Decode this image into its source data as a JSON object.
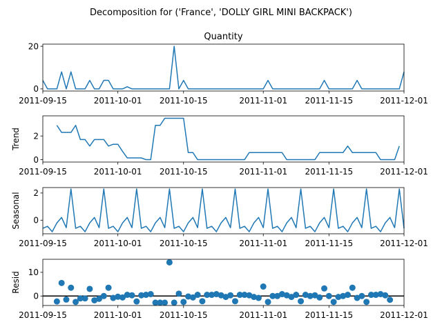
{
  "figure": {
    "suptitle": "Decomposition for ('France', 'DOLLY GIRL MINI BACKPACK')"
  },
  "chart_data": [
    {
      "type": "line",
      "panel": "observed",
      "title": "Quantity",
      "ylabel": "",
      "color": "#1f77b4",
      "x_start": "2011-09-15",
      "x_end": "2011-12-01",
      "x_ticks": [
        "2011-09-15",
        "2011-10-01",
        "2011-10-15",
        "2011-11-01",
        "2011-11-15",
        "2011-12-01"
      ],
      "y_ticks": [
        0,
        20
      ],
      "ylim": [
        -1,
        21
      ],
      "y_offset_day": 0,
      "values": [
        4,
        0,
        0,
        0,
        8,
        0,
        8,
        0,
        0,
        0,
        4,
        0,
        0,
        4,
        4,
        0,
        0,
        0,
        1,
        0,
        0,
        0,
        0,
        0,
        0,
        0,
        0,
        0,
        20,
        0,
        4,
        0,
        0,
        0,
        0,
        0,
        0,
        0,
        0,
        0,
        0,
        0,
        0,
        0,
        0,
        0,
        0,
        0,
        4,
        0,
        0,
        0,
        0,
        0,
        0,
        0,
        0,
        0,
        0,
        0,
        4,
        0,
        0,
        0,
        0,
        0,
        0,
        4,
        0,
        0,
        0,
        0,
        0,
        0,
        0,
        0,
        0,
        8
      ]
    },
    {
      "type": "line",
      "panel": "trend",
      "title": "",
      "ylabel": "Trend",
      "color": "#1f77b4",
      "x_start": "2011-09-15",
      "x_end": "2011-12-01",
      "x_ticks": [
        "2011-09-15",
        "2011-10-01",
        "2011-10-15",
        "2011-11-01",
        "2011-11-15",
        "2011-12-01"
      ],
      "y_ticks": [
        0,
        2
      ],
      "ylim": [
        -0.2,
        3.7
      ],
      "y_offset_day": 3,
      "values": [
        2.9,
        2.3,
        2.3,
        2.3,
        2.9,
        1.7,
        1.7,
        1.15,
        1.7,
        1.7,
        1.7,
        1.15,
        1.3,
        1.3,
        0.7,
        0.15,
        0.15,
        0.15,
        0.15,
        0.0,
        0.0,
        2.9,
        2.9,
        3.5,
        3.5,
        3.5,
        3.5,
        3.5,
        0.6,
        0.6,
        0.0,
        0.0,
        0.0,
        0.0,
        0.0,
        0.0,
        0.0,
        0.0,
        0.0,
        0.0,
        0.0,
        0.6,
        0.6,
        0.6,
        0.6,
        0.6,
        0.6,
        0.6,
        0.6,
        0.0,
        0.0,
        0.0,
        0.0,
        0.0,
        0.0,
        0.0,
        0.6,
        0.6,
        0.6,
        0.6,
        0.6,
        0.6,
        1.15,
        0.6,
        0.6,
        0.6,
        0.6,
        0.6,
        0.6,
        0.0,
        0.0,
        0.0,
        0.0,
        1.15
      ]
    },
    {
      "type": "line",
      "panel": "seasonal",
      "title": "",
      "ylabel": "Seasonal",
      "color": "#1f77b4",
      "x_start": "2011-09-15",
      "x_end": "2011-12-01",
      "x_ticks": [
        "2011-09-15",
        "2011-10-01",
        "2011-10-15",
        "2011-11-01",
        "2011-11-15",
        "2011-12-01"
      ],
      "y_ticks": [
        0,
        2
      ],
      "ylim": [
        -1.0,
        2.4
      ],
      "y_offset_day": 0,
      "values": [
        -0.6,
        -0.45,
        -0.85,
        -0.2,
        0.2,
        -0.55,
        2.3,
        -0.6,
        -0.45,
        -0.85,
        -0.2,
        0.2,
        -0.55,
        2.3,
        -0.6,
        -0.45,
        -0.85,
        -0.2,
        0.2,
        -0.55,
        2.3,
        -0.6,
        -0.45,
        -0.85,
        -0.2,
        0.2,
        -0.55,
        2.3,
        -0.6,
        -0.45,
        -0.85,
        -0.2,
        0.2,
        -0.55,
        2.3,
        -0.6,
        -0.45,
        -0.85,
        -0.2,
        0.2,
        -0.55,
        2.3,
        -0.6,
        -0.45,
        -0.85,
        -0.2,
        0.2,
        -0.55,
        2.3,
        -0.6,
        -0.45,
        -0.85,
        -0.2,
        0.2,
        -0.55,
        2.3,
        -0.6,
        -0.45,
        -0.85,
        -0.2,
        0.2,
        -0.55,
        2.3,
        -0.6,
        -0.45,
        -0.85,
        -0.2,
        0.2,
        -0.55,
        2.3,
        -0.6,
        -0.45,
        -0.85,
        -0.2,
        0.2,
        -0.55,
        2.3,
        -0.6
      ]
    },
    {
      "type": "scatter",
      "panel": "resid",
      "title": "",
      "ylabel": "Resid",
      "color": "#1f77b4",
      "x_start": "2011-09-15",
      "x_end": "2011-12-01",
      "x_ticks": [
        "2011-09-15",
        "2011-10-01",
        "2011-10-15",
        "2011-11-01",
        "2011-11-15",
        "2011-12-01"
      ],
      "y_ticks": [
        0,
        10
      ],
      "ylim": [
        -4,
        15.5
      ],
      "baseline": 0,
      "y_offset_day": 3,
      "values": [
        -2.3,
        5.5,
        -1.5,
        3.5,
        -2.5,
        -1.0,
        -1.0,
        3.0,
        -1.8,
        -1.2,
        0.0,
        3.5,
        -0.8,
        -0.3,
        -0.6,
        0.5,
        0.3,
        -2.3,
        0.3,
        0.5,
        0.8,
        -2.8,
        -2.8,
        -2.8,
        14.2,
        -2.8,
        1.0,
        -2.5,
        -0.2,
        -0.6,
        0.5,
        -2.2,
        0.5,
        0.5,
        0.8,
        0.3,
        -0.4,
        0.3,
        -2.2,
        0.5,
        0.5,
        0.3,
        -0.4,
        -0.8,
        4.0,
        -2.5,
        0.0,
        0.0,
        0.8,
        0.3,
        -0.4,
        0.5,
        -2.2,
        0.5,
        0.0,
        0.3,
        -0.6,
        3.2,
        0.0,
        -2.5,
        -0.4,
        0.0,
        0.5,
        3.5,
        -0.8,
        0.0,
        -2.5,
        0.5,
        0.5,
        0.8,
        0.3,
        -1.6
      ]
    }
  ]
}
